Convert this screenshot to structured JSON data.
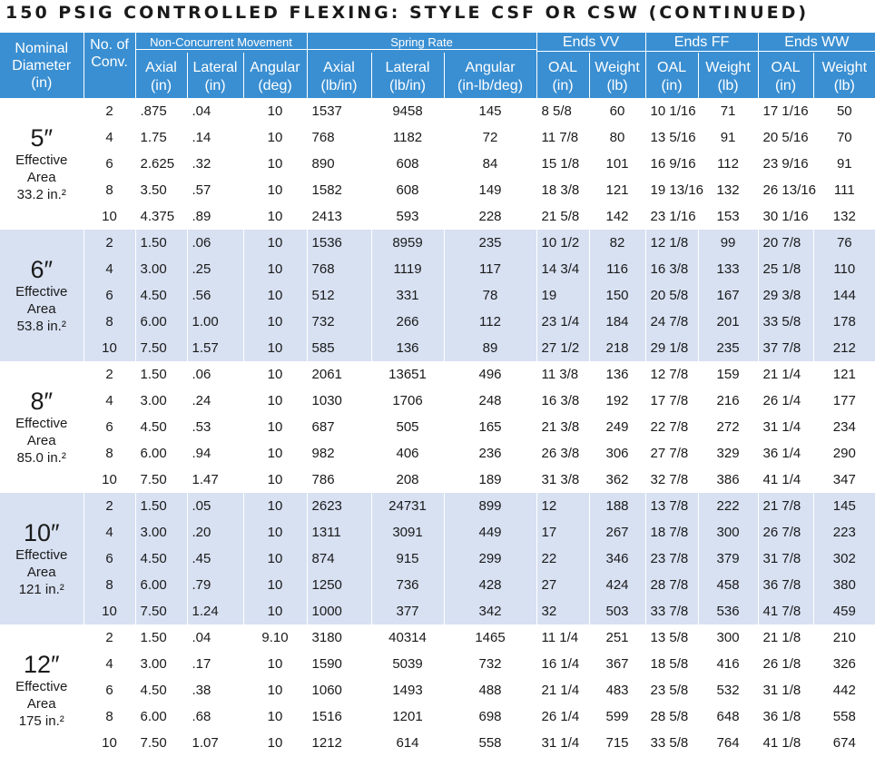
{
  "title": "150 PSIG CONTROLLED FLEXING:  STYLE CSF OR CSW (CONTINUED)",
  "headers": {
    "nominal_diameter": [
      "Nominal",
      "Diameter",
      "(in)"
    ],
    "no_conv": [
      "No. of",
      "Conv."
    ],
    "group_non_concurrent": "Non-Concurrent Movement",
    "group_spring_rate": "Spring Rate",
    "group_ends_vv": "Ends VV",
    "group_ends_ff": "Ends FF",
    "group_ends_ww": "Ends WW",
    "sub": [
      [
        "Axial",
        "(in)"
      ],
      [
        "Lateral",
        "(in)"
      ],
      [
        "Angular",
        "(deg)"
      ],
      [
        "Axial",
        "(lb/in)"
      ],
      [
        "Lateral",
        "(lb/in)"
      ],
      [
        "Angular",
        "(in-lb/deg)"
      ],
      [
        "OAL",
        "(in)"
      ],
      [
        "Weight",
        "(lb)"
      ],
      [
        "OAL",
        "(in)"
      ],
      [
        "Weight",
        "(lb)"
      ],
      [
        "OAL",
        "(in)"
      ],
      [
        "Weight",
        "(lb)"
      ]
    ]
  },
  "groups": [
    {
      "size": "5″",
      "label1": "Effective",
      "label2": "Area",
      "area": "33.2 in.²",
      "rows": [
        [
          "2",
          ".875",
          ".04",
          "10",
          "1537",
          "9458",
          "145",
          "8 5/8",
          "60",
          "10 1/16",
          "71",
          "17 1/16",
          "50"
        ],
        [
          "4",
          "1.75",
          ".14",
          "10",
          "768",
          "1182",
          "72",
          "11 7/8",
          "80",
          "13 5/16",
          "91",
          "20 5/16",
          "70"
        ],
        [
          "6",
          "2.625",
          ".32",
          "10",
          "890",
          "608",
          "84",
          "15 1/8",
          "101",
          "16 9/16",
          "112",
          "23 9/16",
          "91"
        ],
        [
          "8",
          "3.50",
          ".57",
          "10",
          "1582",
          "608",
          "149",
          "18 3/8",
          "121",
          "19 13/16",
          "132",
          "26 13/16",
          "111"
        ],
        [
          "10",
          "4.375",
          ".89",
          "10",
          "2413",
          "593",
          "228",
          "21 5/8",
          "142",
          "23 1/16",
          "153",
          "30 1/16",
          "132"
        ]
      ]
    },
    {
      "size": "6″",
      "label1": "Effective",
      "label2": "Area",
      "area": "53.8 in.²",
      "rows": [
        [
          "2",
          "1.50",
          ".06",
          "10",
          "1536",
          "8959",
          "235",
          "10 1/2",
          "82",
          "12 1/8",
          "99",
          "20 7/8",
          "76"
        ],
        [
          "4",
          "3.00",
          ".25",
          "10",
          "768",
          "1119",
          "117",
          "14 3/4",
          "116",
          "16 3/8",
          "133",
          "25 1/8",
          "110"
        ],
        [
          "6",
          "4.50",
          ".56",
          "10",
          "512",
          "331",
          "78",
          "19",
          "150",
          "20 5/8",
          "167",
          "29 3/8",
          "144"
        ],
        [
          "8",
          "6.00",
          "1.00",
          "10",
          "732",
          "266",
          "112",
          "23 1/4",
          "184",
          "24 7/8",
          "201",
          "33 5/8",
          "178"
        ],
        [
          "10",
          "7.50",
          "1.57",
          "10",
          "585",
          "136",
          "89",
          "27 1/2",
          "218",
          "29 1/8",
          "235",
          "37 7/8",
          "212"
        ]
      ]
    },
    {
      "size": "8″",
      "label1": "Effective",
      "label2": "Area",
      "area": "85.0 in.²",
      "rows": [
        [
          "2",
          "1.50",
          ".06",
          "10",
          "2061",
          "13651",
          "496",
          "11 3/8",
          "136",
          "12 7/8",
          "159",
          "21 1/4",
          "121"
        ],
        [
          "4",
          "3.00",
          ".24",
          "10",
          "1030",
          "1706",
          "248",
          "16 3/8",
          "192",
          "17 7/8",
          "216",
          "26 1/4",
          "177"
        ],
        [
          "6",
          "4.50",
          ".53",
          "10",
          "687",
          "505",
          "165",
          "21 3/8",
          "249",
          "22 7/8",
          "272",
          "31 1/4",
          "234"
        ],
        [
          "8",
          "6.00",
          ".94",
          "10",
          "982",
          "406",
          "236",
          "26 3/8",
          "306",
          "27 7/8",
          "329",
          "36 1/4",
          "290"
        ],
        [
          "10",
          "7.50",
          "1.47",
          "10",
          "786",
          "208",
          "189",
          "31 3/8",
          "362",
          "32 7/8",
          "386",
          "41 1/4",
          "347"
        ]
      ]
    },
    {
      "size": "10″",
      "label1": "Effective",
      "label2": "Area",
      "area": "121 in.²",
      "rows": [
        [
          "2",
          "1.50",
          ".05",
          "10",
          "2623",
          "24731",
          "899",
          "12",
          "188",
          "13 7/8",
          "222",
          "21 7/8",
          "145"
        ],
        [
          "4",
          "3.00",
          ".20",
          "10",
          "1311",
          "3091",
          "449",
          "17",
          "267",
          "18 7/8",
          "300",
          "26 7/8",
          "223"
        ],
        [
          "6",
          "4.50",
          ".45",
          "10",
          "874",
          "915",
          "299",
          "22",
          "346",
          "23 7/8",
          "379",
          "31 7/8",
          "302"
        ],
        [
          "8",
          "6.00",
          ".79",
          "10",
          "1250",
          "736",
          "428",
          "27",
          "424",
          "28 7/8",
          "458",
          "36 7/8",
          "380"
        ],
        [
          "10",
          "7.50",
          "1.24",
          "10",
          "1000",
          "377",
          "342",
          "32",
          "503",
          "33 7/8",
          "536",
          "41 7/8",
          "459"
        ]
      ]
    },
    {
      "size": "12″",
      "label1": "Effective",
      "label2": "Area",
      "area": "175 in.²",
      "rows": [
        [
          "2",
          "1.50",
          ".04",
          "9.10",
          "3180",
          "40314",
          "1465",
          "11 1/4",
          "251",
          "13 5/8",
          "300",
          "21 1/8",
          "210"
        ],
        [
          "4",
          "3.00",
          ".17",
          "10",
          "1590",
          "5039",
          "732",
          "16 1/4",
          "367",
          "18 5/8",
          "416",
          "26 1/8",
          "326"
        ],
        [
          "6",
          "4.50",
          ".38",
          "10",
          "1060",
          "1493",
          "488",
          "21 1/4",
          "483",
          "23 5/8",
          "532",
          "31 1/8",
          "442"
        ],
        [
          "8",
          "6.00",
          ".68",
          "10",
          "1516",
          "1201",
          "698",
          "26 1/4",
          "599",
          "28 5/8",
          "648",
          "36 1/8",
          "558"
        ],
        [
          "10",
          "7.50",
          "1.07",
          "10",
          "1212",
          "614",
          "558",
          "31 1/4",
          "715",
          "33 5/8",
          "764",
          "41 1/8",
          "674"
        ]
      ]
    }
  ]
}
